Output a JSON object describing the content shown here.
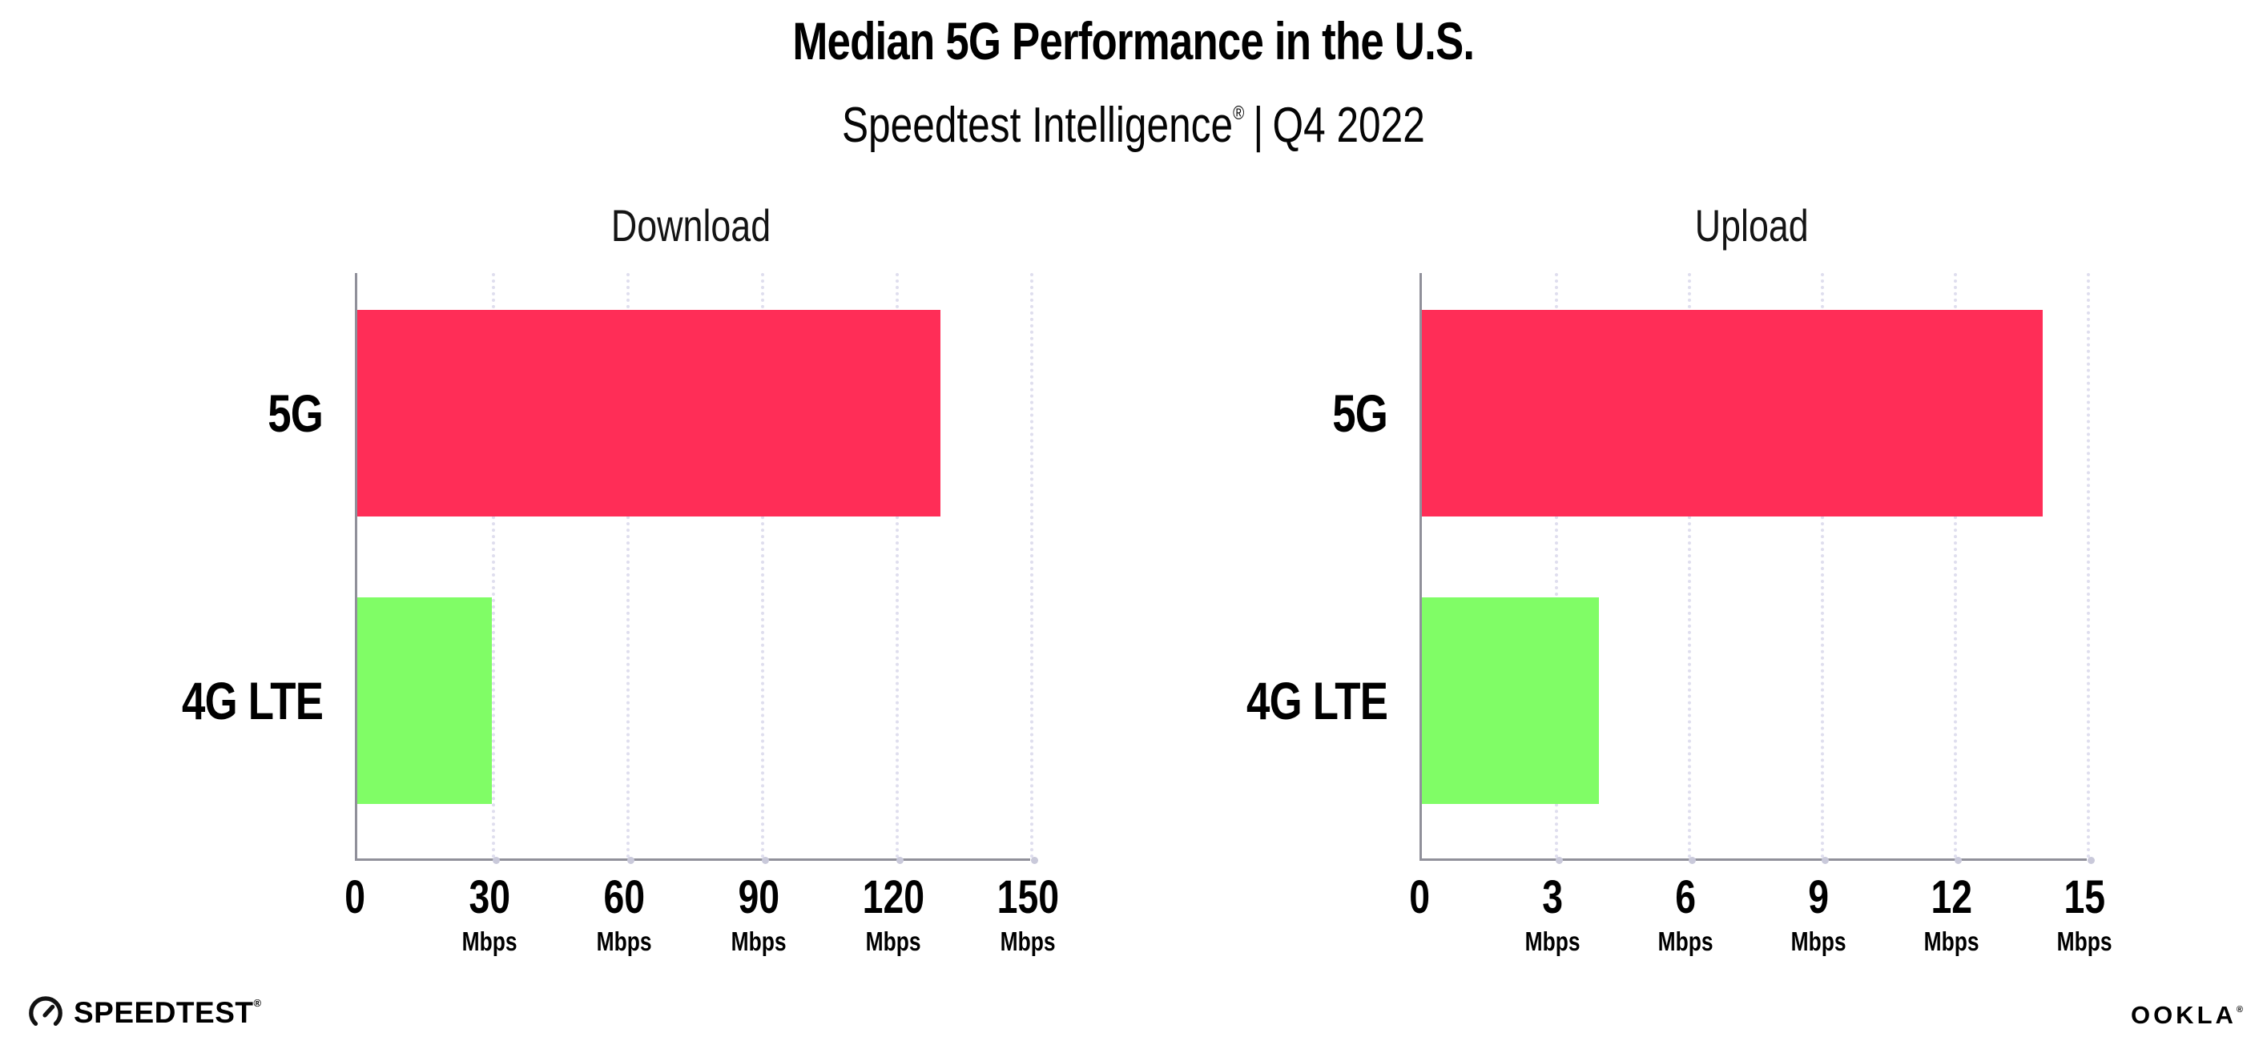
{
  "header": {
    "title": "Median 5G Performance in the U.S.",
    "subtitle_brand": "Speedtest Intelligence",
    "subtitle_mark": "®",
    "subtitle_separator": "|",
    "subtitle_period": "Q4 2022"
  },
  "chart_data": [
    {
      "type": "bar",
      "orientation": "horizontal",
      "title": "Download",
      "categories": [
        "5G",
        "4G LTE"
      ],
      "values": [
        130,
        30
      ],
      "unit": "Mbps",
      "xlim": [
        0,
        150
      ],
      "xticks": [
        0,
        30,
        60,
        90,
        120,
        150
      ],
      "series_colors": [
        "#FF2D57",
        "#80FD66"
      ],
      "grid": "vertical-dotted",
      "legend": "none"
    },
    {
      "type": "bar",
      "orientation": "horizontal",
      "title": "Upload",
      "categories": [
        "5G",
        "4G LTE"
      ],
      "values": [
        14,
        4
      ],
      "unit": "Mbps",
      "xlim": [
        0,
        15
      ],
      "xticks": [
        0,
        3,
        6,
        9,
        12,
        15
      ],
      "series_colors": [
        "#FF2D57",
        "#80FD66"
      ],
      "grid": "vertical-dotted",
      "legend": "none"
    }
  ],
  "footer": {
    "speedtest_label": "SPEEDTEST",
    "speedtest_mark": "®",
    "ookla_label": "OOKLA",
    "ookla_mark": "®"
  },
  "colors": {
    "bar_5g": "#FF2D57",
    "bar_4g_lte": "#80FD66",
    "axis": "#90909A",
    "gridline_dot": "#DFDEEE",
    "text": "#000000"
  }
}
